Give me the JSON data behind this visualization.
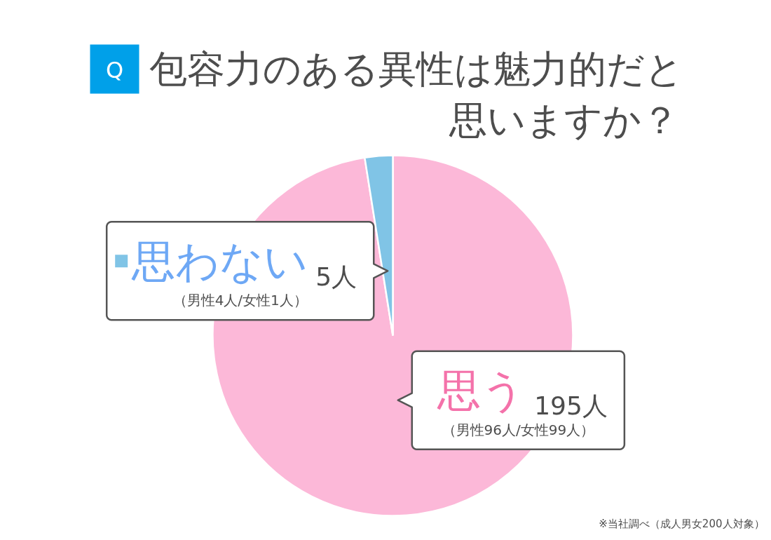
{
  "chart_data": {
    "type": "pie",
    "title": "Q 包容力のある異性は魅力的だと思いますか？",
    "categories": [
      "思う",
      "思わない"
    ],
    "values": [
      195,
      5
    ],
    "colors": [
      "#fcb8d8",
      "#80c4e6"
    ],
    "value_labels": [
      "195人",
      "5人"
    ],
    "annotations": [
      "（男性96人/女性99人）",
      "（男性4人/女性1人）",
      "※当社調べ（成人男女200人対象）"
    ]
  }
}
